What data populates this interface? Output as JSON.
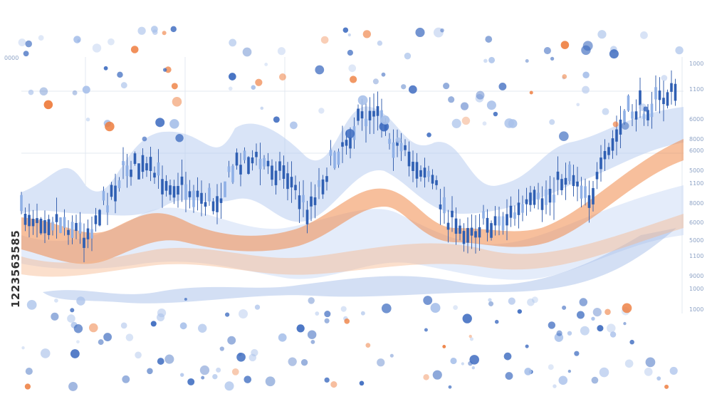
{
  "axis_label_top_left": "0000",
  "axis_labels_right": [
    "1000",
    "1100",
    "6000",
    "8000",
    "6000",
    "5000",
    "1100",
    "8000",
    "6000",
    "5000",
    "1100",
    "9000",
    "1000",
    "1000"
  ],
  "image_id": "1223563585"
}
